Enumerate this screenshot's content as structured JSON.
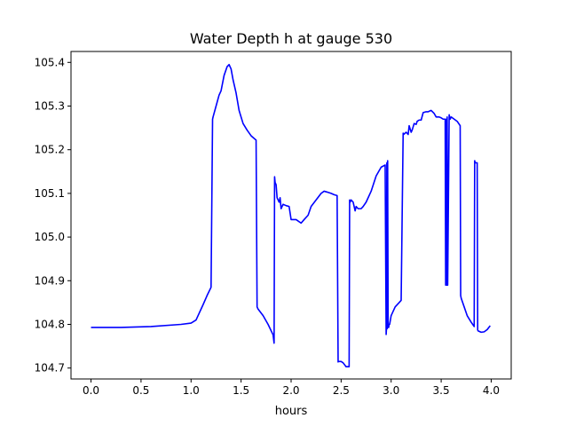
{
  "chart_data": {
    "type": "line",
    "title": "Water Depth h at gauge 530",
    "xlabel": "hours",
    "ylabel": "",
    "xlim": [
      -0.2,
      4.2
    ],
    "ylim": [
      104.675,
      105.425
    ],
    "xticks": [
      0.0,
      0.5,
      1.0,
      1.5,
      2.0,
      2.5,
      3.0,
      3.5,
      4.0
    ],
    "xtick_labels": [
      "0.0",
      "0.5",
      "1.0",
      "1.5",
      "2.0",
      "2.5",
      "3.0",
      "3.5",
      "4.0"
    ],
    "yticks": [
      104.7,
      104.8,
      104.9,
      105.0,
      105.1,
      105.2,
      105.3,
      105.4
    ],
    "ytick_labels": [
      "104.7",
      "104.8",
      "104.9",
      "105.0",
      "105.1",
      "105.2",
      "105.3",
      "105.4"
    ],
    "grid": false,
    "series": [
      {
        "name": "",
        "color": "#0000ff",
        "x": [
          0.0,
          0.3,
          0.6,
          0.9,
          1.0,
          1.05,
          1.08,
          1.12,
          1.16,
          1.2,
          1.215,
          1.22,
          1.25,
          1.28,
          1.3,
          1.33,
          1.36,
          1.38,
          1.4,
          1.42,
          1.45,
          1.48,
          1.52,
          1.56,
          1.6,
          1.65,
          1.66,
          1.67,
          1.72,
          1.77,
          1.82,
          1.83,
          1.835,
          1.84,
          1.85,
          1.86,
          1.88,
          1.89,
          1.9,
          1.92,
          1.95,
          1.98,
          2.0,
          2.05,
          2.1,
          2.13,
          2.17,
          2.2,
          2.25,
          2.3,
          2.33,
          2.36,
          2.4,
          2.43,
          2.46,
          2.47,
          2.475,
          2.5,
          2.52,
          2.55,
          2.58,
          2.585,
          2.59,
          2.6,
          2.62,
          2.64,
          2.65,
          2.67,
          2.7,
          2.72,
          2.75,
          2.8,
          2.85,
          2.9,
          2.94,
          2.95,
          2.953,
          2.957,
          2.96,
          2.965,
          2.97,
          2.975,
          2.98,
          2.985,
          3.0,
          3.04,
          3.08,
          3.1,
          3.12,
          3.125,
          3.15,
          3.17,
          3.18,
          3.2,
          3.21,
          3.23,
          3.25,
          3.26,
          3.28,
          3.3,
          3.32,
          3.35,
          3.37,
          3.4,
          3.43,
          3.45,
          3.48,
          3.5,
          3.52,
          3.54,
          3.545,
          3.55,
          3.555,
          3.56,
          3.565,
          3.58,
          3.59,
          3.6,
          3.63,
          3.66,
          3.69,
          3.695,
          3.7,
          3.73,
          3.76,
          3.8,
          3.83,
          3.835,
          3.84,
          3.86,
          3.865,
          3.87,
          3.9,
          3.93,
          3.96,
          3.99
        ],
        "y": [
          104.793,
          104.793,
          104.795,
          104.8,
          104.803,
          104.81,
          104.825,
          104.845,
          104.866,
          104.885,
          105.27,
          105.275,
          105.3,
          105.325,
          105.335,
          105.37,
          105.39,
          105.395,
          105.385,
          105.36,
          105.33,
          105.29,
          105.26,
          105.245,
          105.232,
          105.222,
          104.84,
          104.835,
          104.82,
          104.8,
          104.776,
          104.757,
          105.138,
          105.125,
          105.12,
          105.09,
          105.08,
          105.09,
          105.065,
          105.075,
          105.072,
          105.07,
          105.04,
          105.04,
          105.032,
          105.04,
          105.05,
          105.07,
          105.085,
          105.1,
          105.105,
          105.103,
          105.1,
          105.097,
          105.095,
          104.714,
          104.715,
          104.715,
          104.712,
          104.703,
          104.703,
          105.085,
          105.08,
          105.085,
          105.08,
          105.06,
          105.07,
          105.065,
          105.065,
          105.07,
          105.08,
          105.105,
          105.14,
          105.16,
          105.165,
          104.777,
          104.79,
          105.17,
          104.79,
          105.175,
          104.793,
          104.793,
          104.8,
          104.8,
          104.82,
          104.84,
          104.85,
          104.855,
          105.238,
          105.235,
          105.24,
          105.235,
          105.255,
          105.24,
          105.245,
          105.26,
          105.258,
          105.265,
          105.268,
          105.268,
          105.285,
          105.287,
          105.287,
          105.29,
          105.283,
          105.275,
          105.275,
          105.273,
          105.27,
          105.27,
          104.89,
          105.27,
          104.89,
          105.275,
          104.89,
          105.28,
          105.27,
          105.275,
          105.27,
          105.265,
          105.255,
          104.866,
          104.86,
          104.84,
          104.82,
          104.805,
          104.795,
          105.175,
          105.17,
          105.17,
          104.787,
          104.785,
          104.782,
          104.783,
          104.788,
          104.797
        ]
      }
    ]
  }
}
